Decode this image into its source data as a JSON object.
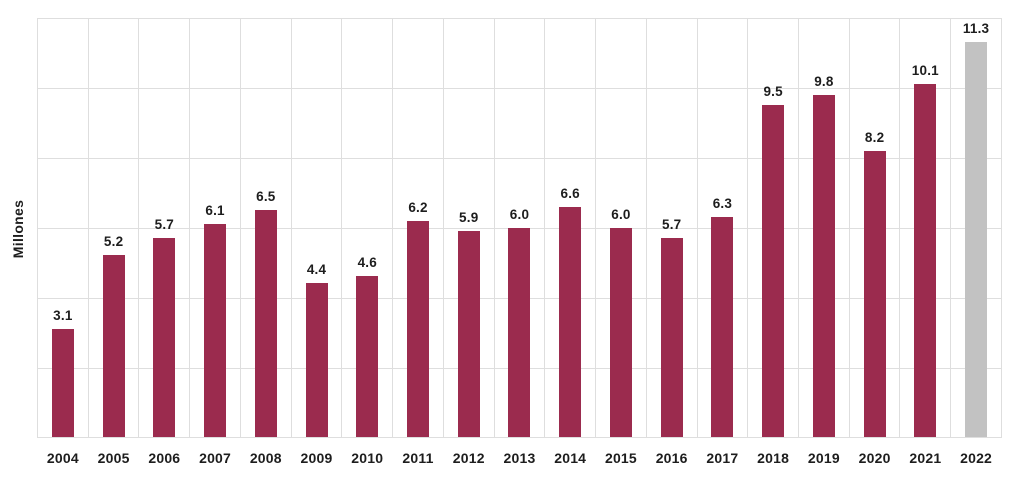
{
  "chart_data": {
    "type": "bar",
    "title": "",
    "xlabel": "",
    "ylabel": "Millones",
    "categories": [
      "2004",
      "2005",
      "2006",
      "2007",
      "2008",
      "2009",
      "2010",
      "2011",
      "2012",
      "2013",
      "2014",
      "2015",
      "2016",
      "2017",
      "2018",
      "2019",
      "2020",
      "2021",
      "2022"
    ],
    "values": [
      3.1,
      5.2,
      5.7,
      6.1,
      6.5,
      4.4,
      4.6,
      6.2,
      5.9,
      6.0,
      6.6,
      6.0,
      5.7,
      6.3,
      9.5,
      9.8,
      8.2,
      10.1,
      11.3
    ],
    "value_labels": [
      "3.1",
      "5.2",
      "5.7",
      "6.1",
      "6.5",
      "4.4",
      "4.6",
      "6.2",
      "5.9",
      "6.0",
      "6.6",
      "6.0",
      "5.7",
      "6.3",
      "9.5",
      "9.8",
      "8.2",
      "10.1",
      "11.3"
    ],
    "ylim": [
      0,
      12
    ],
    "grid_step": 2,
    "grid": true,
    "legend_position": "none",
    "highlight_last_bar": true,
    "colors": {
      "bar": "#9B2B4E",
      "last_bar": "#C2C2C2",
      "gridline": "#DEDEDE",
      "text": "#1D1D1D",
      "background": "#FFFFFF"
    }
  }
}
